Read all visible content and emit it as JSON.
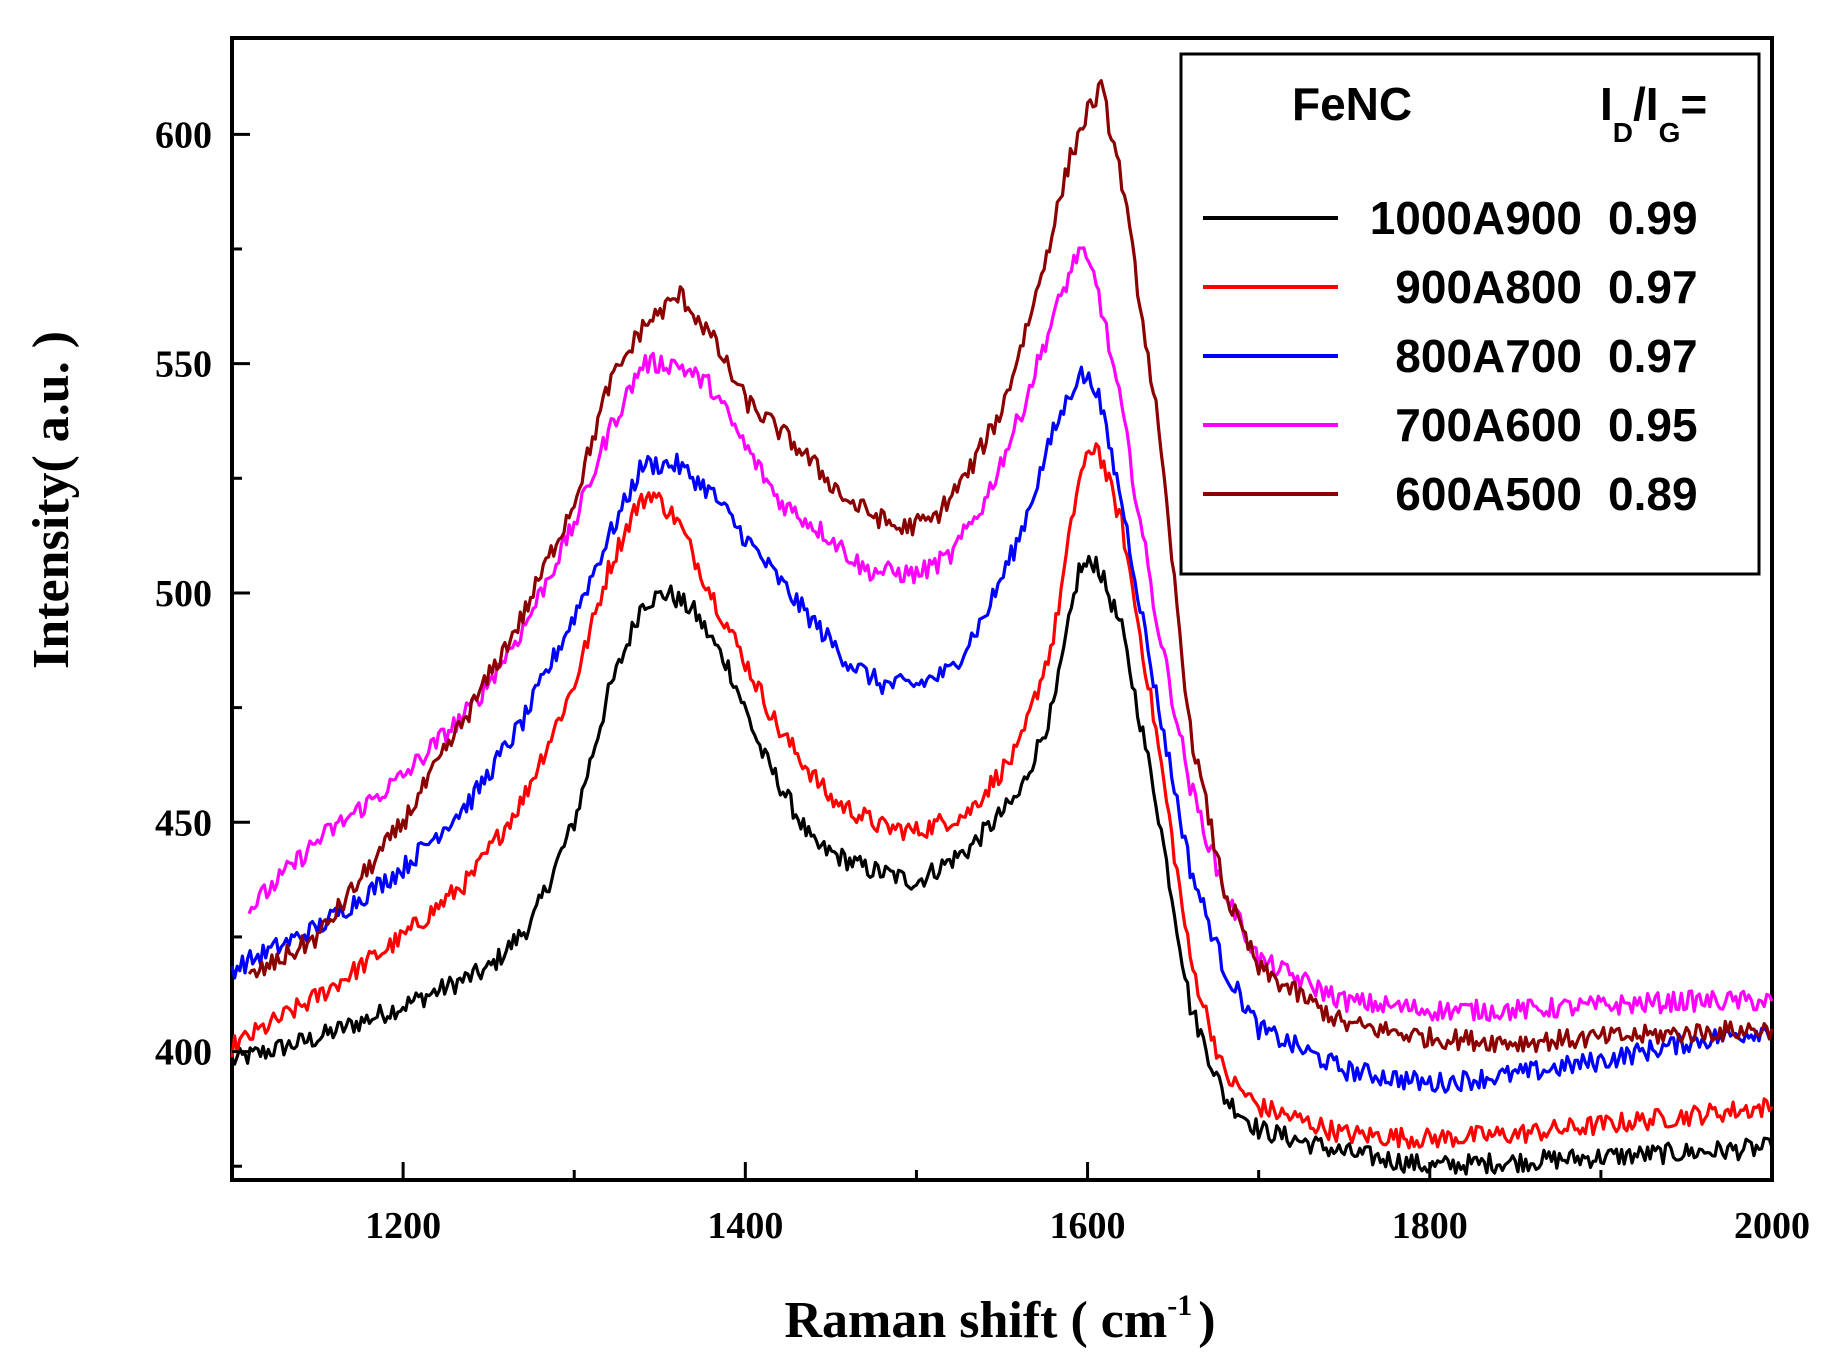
{
  "chart_data": {
    "type": "line",
    "xlabel": "Raman shift ( cm",
    "xlabel_sup": "-1",
    "xlabel_close": ")",
    "ylabel": "Intensity( a.u. )",
    "xlim": [
      1100,
      2000
    ],
    "ylim": [
      372,
      621
    ],
    "x_ticks": [
      1200,
      1400,
      1600,
      1800,
      2000
    ],
    "y_ticks": [
      400,
      450,
      500,
      550,
      600
    ],
    "legend": {
      "title": "FeNC",
      "ratio_main_1": "I",
      "ratio_sub_1": "D",
      "ratio_slash": "/I",
      "ratio_sub_2": "G",
      "ratio_eq": "=",
      "placement": "top-right"
    },
    "series": [
      {
        "name": "1000A900",
        "ratio": "0.99",
        "color": "#000000",
        "points": [
          [
            1100,
            398
          ],
          [
            1150,
            403
          ],
          [
            1200,
            410
          ],
          [
            1250,
            418
          ],
          [
            1275,
            428
          ],
          [
            1300,
            450
          ],
          [
            1320,
            478
          ],
          [
            1340,
            498
          ],
          [
            1355,
            500
          ],
          [
            1370,
            496
          ],
          [
            1390,
            484
          ],
          [
            1410,
            465
          ],
          [
            1440,
            445
          ],
          [
            1470,
            440
          ],
          [
            1500,
            437
          ],
          [
            1530,
            444
          ],
          [
            1560,
            456
          ],
          [
            1580,
            475
          ],
          [
            1595,
            505
          ],
          [
            1605,
            507
          ],
          [
            1620,
            492
          ],
          [
            1640,
            455
          ],
          [
            1660,
            410
          ],
          [
            1680,
            390
          ],
          [
            1700,
            383
          ],
          [
            1750,
            378
          ],
          [
            1800,
            375
          ],
          [
            1850,
            376
          ],
          [
            1900,
            377
          ],
          [
            1950,
            378
          ],
          [
            2000,
            379
          ]
        ]
      },
      {
        "name": "900A800",
        "ratio": "0.97",
        "color": "#ff0000",
        "points": [
          [
            1100,
            401
          ],
          [
            1150,
            412
          ],
          [
            1200,
            425
          ],
          [
            1240,
            438
          ],
          [
            1270,
            455
          ],
          [
            1300,
            480
          ],
          [
            1320,
            505
          ],
          [
            1335,
            518
          ],
          [
            1345,
            522
          ],
          [
            1360,
            516
          ],
          [
            1380,
            500
          ],
          [
            1400,
            485
          ],
          [
            1420,
            470
          ],
          [
            1450,
            455
          ],
          [
            1480,
            449
          ],
          [
            1500,
            448
          ],
          [
            1530,
            452
          ],
          [
            1560,
            466
          ],
          [
            1580,
            490
          ],
          [
            1595,
            525
          ],
          [
            1605,
            533
          ],
          [
            1620,
            515
          ],
          [
            1640,
            470
          ],
          [
            1660,
            420
          ],
          [
            1680,
            395
          ],
          [
            1700,
            388
          ],
          [
            1750,
            382
          ],
          [
            1800,
            381
          ],
          [
            1850,
            382
          ],
          [
            1900,
            384
          ],
          [
            1950,
            386
          ],
          [
            2000,
            388
          ]
        ]
      },
      {
        "name": "800A700",
        "ratio": "0.97",
        "color": "#0000ff",
        "points": [
          [
            1100,
            418
          ],
          [
            1150,
            427
          ],
          [
            1200,
            440
          ],
          [
            1240,
            455
          ],
          [
            1270,
            472
          ],
          [
            1300,
            495
          ],
          [
            1320,
            512
          ],
          [
            1340,
            528
          ],
          [
            1360,
            528
          ],
          [
            1380,
            522
          ],
          [
            1400,
            512
          ],
          [
            1430,
            498
          ],
          [
            1460,
            485
          ],
          [
            1480,
            480
          ],
          [
            1500,
            480
          ],
          [
            1520,
            483
          ],
          [
            1540,
            495
          ],
          [
            1560,
            512
          ],
          [
            1580,
            535
          ],
          [
            1595,
            548
          ],
          [
            1605,
            545
          ],
          [
            1620,
            520
          ],
          [
            1640,
            478
          ],
          [
            1660,
            440
          ],
          [
            1680,
            418
          ],
          [
            1700,
            405
          ],
          [
            1750,
            396
          ],
          [
            1800,
            393
          ],
          [
            1850,
            395
          ],
          [
            1900,
            398
          ],
          [
            1950,
            402
          ],
          [
            2000,
            405
          ]
        ]
      },
      {
        "name": "700A600",
        "ratio": "0.95",
        "color": "#ff00ff",
        "points": [
          [
            1110,
            431
          ],
          [
            1150,
            446
          ],
          [
            1200,
            460
          ],
          [
            1240,
            475
          ],
          [
            1270,
            492
          ],
          [
            1300,
            515
          ],
          [
            1320,
            535
          ],
          [
            1340,
            550
          ],
          [
            1360,
            550
          ],
          [
            1380,
            545
          ],
          [
            1400,
            532
          ],
          [
            1420,
            520
          ],
          [
            1450,
            512
          ],
          [
            1470,
            505
          ],
          [
            1500,
            504
          ],
          [
            1520,
            508
          ],
          [
            1540,
            520
          ],
          [
            1560,
            538
          ],
          [
            1580,
            560
          ],
          [
            1595,
            575
          ],
          [
            1605,
            568
          ],
          [
            1620,
            540
          ],
          [
            1640,
            495
          ],
          [
            1660,
            458
          ],
          [
            1680,
            435
          ],
          [
            1700,
            420
          ],
          [
            1750,
            411
          ],
          [
            1800,
            409
          ],
          [
            1850,
            409
          ],
          [
            1900,
            410
          ],
          [
            1950,
            411
          ],
          [
            2000,
            411
          ]
        ]
      },
      {
        "name": "600A500",
        "ratio": "0.89",
        "color": "#8b0000",
        "points": [
          [
            1110,
            416
          ],
          [
            1150,
            425
          ],
          [
            1200,
            450
          ],
          [
            1240,
            475
          ],
          [
            1270,
            495
          ],
          [
            1300,
            520
          ],
          [
            1320,
            545
          ],
          [
            1340,
            558
          ],
          [
            1362,
            565
          ],
          [
            1380,
            556
          ],
          [
            1400,
            542
          ],
          [
            1430,
            532
          ],
          [
            1460,
            520
          ],
          [
            1490,
            514
          ],
          [
            1510,
            516
          ],
          [
            1530,
            526
          ],
          [
            1550,
            540
          ],
          [
            1570,
            565
          ],
          [
            1590,
            595
          ],
          [
            1600,
            605
          ],
          [
            1608,
            610
          ],
          [
            1620,
            590
          ],
          [
            1640,
            540
          ],
          [
            1660,
            470
          ],
          [
            1680,
            435
          ],
          [
            1700,
            418
          ],
          [
            1750,
            406
          ],
          [
            1800,
            403
          ],
          [
            1850,
            402
          ],
          [
            1900,
            403
          ],
          [
            1950,
            404
          ],
          [
            2000,
            405
          ]
        ]
      }
    ]
  }
}
